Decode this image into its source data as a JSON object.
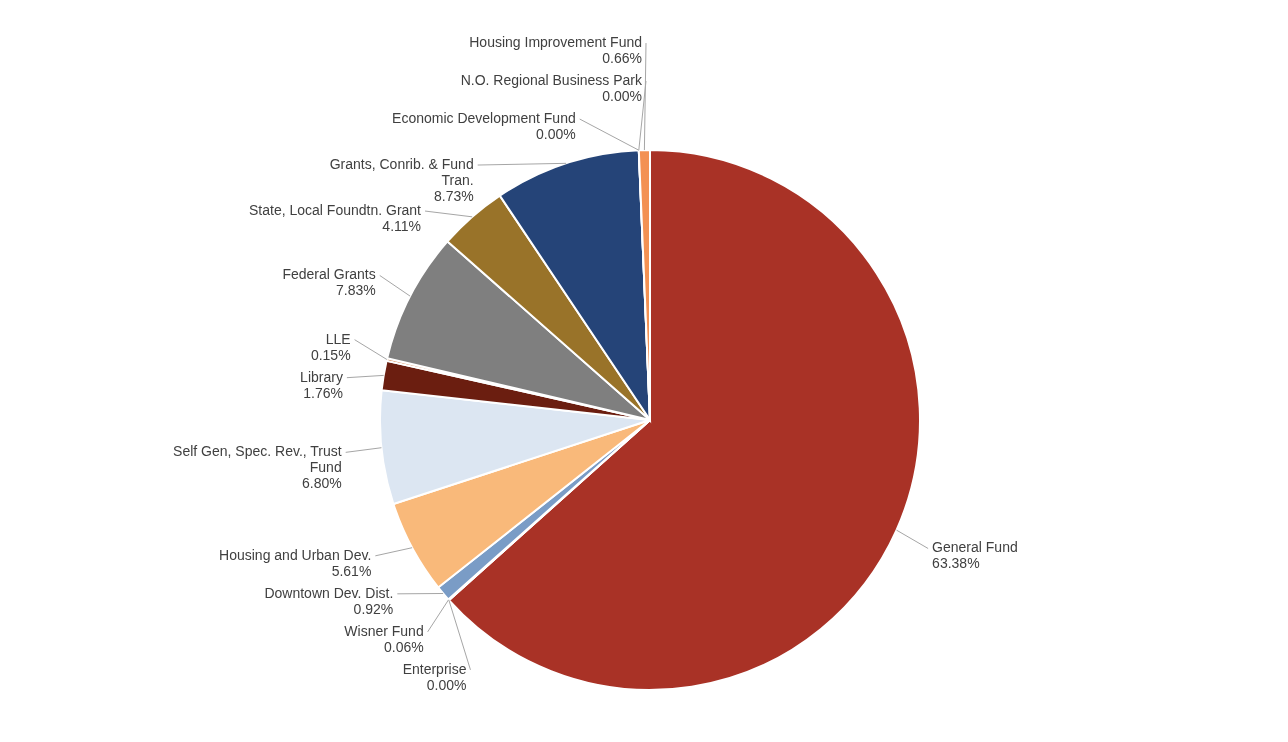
{
  "chart_data": {
    "type": "pie",
    "categories": [
      "General Fund",
      "Enterprise",
      "Wisner Fund",
      "Downtown Dev. Dist.",
      "Housing and Urban Dev.",
      "Self Gen, Spec. Rev., Trust Fund",
      "Library",
      "LLE",
      "Federal Grants",
      "State, Local Foundtn. Grant",
      "Grants, Conrib. & Fund Tran.",
      "N.O. Regional Business Park",
      "Economic Development Fund",
      "Housing Improvement Fund"
    ],
    "values": [
      63.38,
      0.0,
      0.06,
      0.92,
      5.61,
      6.8,
      1.76,
      0.15,
      7.83,
      4.11,
      8.73,
      0.0,
      0.0,
      0.66
    ],
    "colors": [
      "#a93226",
      "#5b9bd5",
      "#4472c4",
      "#7a9cc6",
      "#f9b97a",
      "#dce6f2",
      "#6b1e10",
      "#c55a11",
      "#7f7f7f",
      "#997329",
      "#254478",
      "#c0504d",
      "#8064a2",
      "#f39153"
    ],
    "value_labels": [
      "63.38%",
      "0.00%",
      "0.06%",
      "0.92%",
      "5.61%",
      "6.80%",
      "1.76%",
      "0.15%",
      "7.83%",
      "4.11%",
      "8.73%",
      "0.00%",
      "0.00%",
      "0.66%"
    ]
  }
}
